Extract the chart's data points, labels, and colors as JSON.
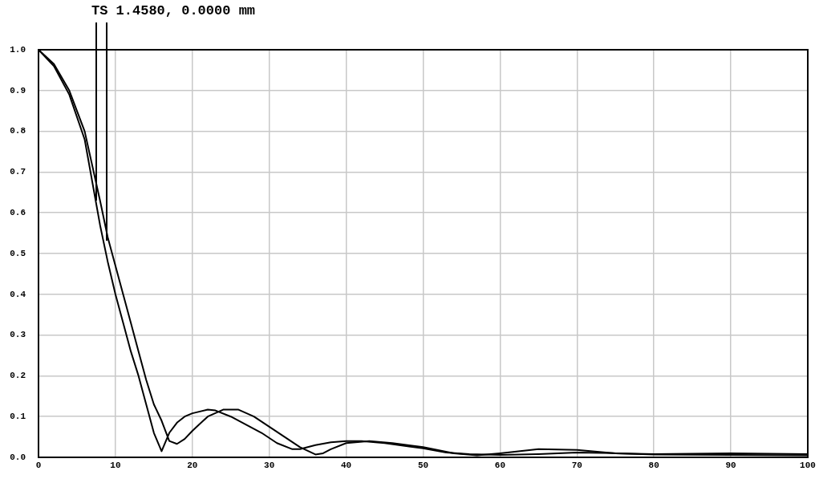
{
  "chart_data": {
    "type": "line",
    "annotations": [
      "TS 1.4580, 0.0000 mm"
    ],
    "series": [
      {
        "color": "#000000",
        "x": [
          0,
          2,
          4,
          6,
          8,
          9,
          10,
          11,
          12,
          13,
          14,
          15,
          16,
          17,
          18,
          19,
          20,
          22,
          23,
          25,
          27,
          29,
          31,
          33,
          34,
          36,
          38,
          40,
          42,
          45,
          50,
          53,
          56,
          60,
          65,
          70,
          75,
          80,
          90,
          100
        ],
        "values": [
          1.0,
          0.96,
          0.89,
          0.78,
          0.57,
          0.48,
          0.4,
          0.33,
          0.26,
          0.2,
          0.13,
          0.06,
          0.015,
          0.06,
          0.085,
          0.1,
          0.108,
          0.117,
          0.115,
          0.1,
          0.08,
          0.06,
          0.035,
          0.02,
          0.02,
          0.03,
          0.037,
          0.04,
          0.04,
          0.035,
          0.022,
          0.012,
          0.008,
          0.006,
          0.008,
          0.012,
          0.01,
          0.007,
          0.006,
          0.005
        ]
      },
      {
        "color": "#000000",
        "x": [
          0,
          2,
          4,
          6,
          8,
          9,
          10,
          11,
          12,
          13,
          14,
          15,
          16,
          17,
          18,
          19,
          20,
          22,
          24,
          26,
          28,
          30,
          32,
          34,
          36,
          37,
          38,
          40,
          43,
          46,
          50,
          54,
          57,
          60,
          65,
          70,
          75,
          80,
          90,
          100
        ],
        "values": [
          1.0,
          0.965,
          0.9,
          0.8,
          0.63,
          0.54,
          0.47,
          0.4,
          0.33,
          0.26,
          0.19,
          0.13,
          0.09,
          0.04,
          0.033,
          0.045,
          0.065,
          0.1,
          0.117,
          0.117,
          0.1,
          0.075,
          0.05,
          0.025,
          0.007,
          0.01,
          0.02,
          0.035,
          0.04,
          0.035,
          0.025,
          0.01,
          0.005,
          0.01,
          0.02,
          0.018,
          0.01,
          0.008,
          0.01,
          0.008
        ]
      }
    ],
    "xlim": [
      0,
      100
    ],
    "xticks": [
      0,
      10,
      20,
      30,
      40,
      50,
      60,
      70,
      80,
      90,
      100
    ],
    "ylim": [
      0,
      1
    ],
    "yticks": [
      {
        "value": 0,
        "label": "0.0"
      },
      {
        "value": 0.1,
        "label": "0.1"
      },
      {
        "value": 0.2,
        "label": "0.2"
      },
      {
        "value": 0.3,
        "label": "0.3"
      },
      {
        "value": 0.4,
        "label": "0.4"
      },
      {
        "value": 0.5,
        "label": "0.5"
      },
      {
        "value": 0.6,
        "label": "0.6"
      },
      {
        "value": 0.7,
        "label": "0.7"
      },
      {
        "value": 0.8,
        "label": "0.8"
      },
      {
        "value": 0.9,
        "label": "0.9"
      },
      {
        "value": 1,
        "label": "1.0"
      }
    ],
    "grid": true,
    "legend": false,
    "marker": "none",
    "line_style": "solid"
  }
}
